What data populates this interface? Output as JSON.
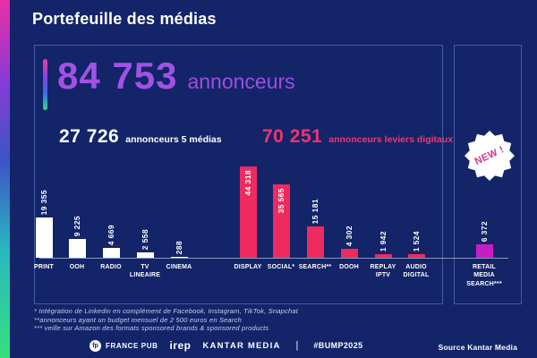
{
  "page": {
    "title": "Portefeuille des médias"
  },
  "summary": {
    "total_value": "84 753",
    "total_label": "annonceurs",
    "media5_value": "27 726",
    "media5_label": "annonceurs 5 médias",
    "digital_value": "70 251",
    "digital_label": "annonceurs leviers digitaux"
  },
  "badge": {
    "label": "NEW !"
  },
  "chart_data": {
    "type": "bar",
    "title": "Portefeuille des médias",
    "unit": "annonceurs",
    "total": {
      "value": 84753,
      "label": "annonceurs"
    },
    "groups": [
      {
        "name": "5 médias",
        "total": 27726,
        "color": "#ffffff"
      },
      {
        "name": "leviers digitaux",
        "total": 70251,
        "color": "#ee2a5e"
      },
      {
        "name": "retail media search",
        "total": 6372,
        "color": "#c41ec4"
      }
    ],
    "categories": [
      "PRINT",
      "OOH",
      "RADIO",
      "TV LINEAIRE",
      "CINEMA",
      "DISPLAY",
      "SOCIAL*",
      "SEARCH**",
      "DOOH",
      "REPLAY IPTV",
      "AUDIO DIGITAL",
      "RETAIL MEDIA SEARCH***"
    ],
    "values": [
      19355,
      9225,
      4669,
      2558,
      288,
      44318,
      35565,
      15181,
      4302,
      1942,
      1524,
      6372
    ],
    "bars": [
      {
        "label": "PRINT",
        "label_display": "PRINT",
        "value": 19355,
        "value_display": "19 355",
        "color": "#ffffff",
        "group": "5 médias",
        "value_inside": false
      },
      {
        "label": "OOH",
        "label_display": "OOH",
        "value": 9225,
        "value_display": "9 225",
        "color": "#ffffff",
        "group": "5 médias",
        "value_inside": false
      },
      {
        "label": "RADIO",
        "label_display": "RADIO",
        "value": 4669,
        "value_display": "4 669",
        "color": "#ffffff",
        "group": "5 médias",
        "value_inside": false
      },
      {
        "label": "TV LINEAIRE",
        "label_display": "TV\nLINEAIRE",
        "value": 2558,
        "value_display": "2 558",
        "color": "#ffffff",
        "group": "5 médias",
        "value_inside": false
      },
      {
        "label": "CINEMA",
        "label_display": "CINEMA",
        "value": 288,
        "value_display": "288",
        "color": "#ffffff",
        "group": "5 médias",
        "value_inside": false
      },
      {
        "label": "DISPLAY",
        "label_display": "DISPLAY",
        "value": 44318,
        "value_display": "44 318",
        "color": "#ee2a5e",
        "group": "leviers digitaux",
        "value_inside": true
      },
      {
        "label": "SOCIAL*",
        "label_display": "SOCIAL*",
        "value": 35565,
        "value_display": "35 565",
        "color": "#ee2a5e",
        "group": "leviers digitaux",
        "value_inside": true
      },
      {
        "label": "SEARCH**",
        "label_display": "SEARCH**",
        "value": 15181,
        "value_display": "15 181",
        "color": "#ee2a5e",
        "group": "leviers digitaux",
        "value_inside": false
      },
      {
        "label": "DOOH",
        "label_display": "DOOH",
        "value": 4302,
        "value_display": "4 302",
        "color": "#ee2a5e",
        "group": "leviers digitaux",
        "value_inside": false
      },
      {
        "label": "REPLAY IPTV",
        "label_display": "REPLAY\nIPTV",
        "value": 1942,
        "value_display": "1 942",
        "color": "#ee2a5e",
        "group": "leviers digitaux",
        "value_inside": false
      },
      {
        "label": "AUDIO DIGITAL",
        "label_display": "AUDIO\nDIGITAL",
        "value": 1524,
        "value_display": "1 524",
        "color": "#ee2a5e",
        "group": "leviers digitaux",
        "value_inside": false
      },
      {
        "label": "RETAIL MEDIA SEARCH***",
        "label_display": "RETAIL\nMEDIA\nSEARCH***",
        "value": 6372,
        "value_display": "6 372",
        "color": "#c41ec4",
        "group": "retail media search",
        "value_inside": false
      }
    ],
    "layout_hints": {
      "grid": false,
      "legend": "none",
      "value_labels": "rotated-90",
      "baseline_visible": true
    }
  },
  "footnotes": [
    "* Intégration de Linkedin en complément de Facebook, Instagram, TikTok, Snapchat",
    "**annonceurs ayant un budget mensuel de 2 500 euros en Search",
    "*** veille sur Amazon des formats sponsored brands & sponsored products"
  ],
  "footer": {
    "logo_monogram": "fp",
    "partners": [
      "FRANCE PUB",
      "irep",
      "KANTAR MEDIA"
    ],
    "separator": "|",
    "hashtag": "#BUMP2025",
    "source": "Source Kantar Media"
  },
  "colors": {
    "background": "#132469",
    "accent_pink": "#ee2a5e",
    "accent_pink_text": "#f0356f",
    "accent_purple": "#a152e3",
    "accent_magenta": "#c41ec4",
    "bar_white": "#ffffff",
    "badge_text_pink": "#d6338f"
  }
}
